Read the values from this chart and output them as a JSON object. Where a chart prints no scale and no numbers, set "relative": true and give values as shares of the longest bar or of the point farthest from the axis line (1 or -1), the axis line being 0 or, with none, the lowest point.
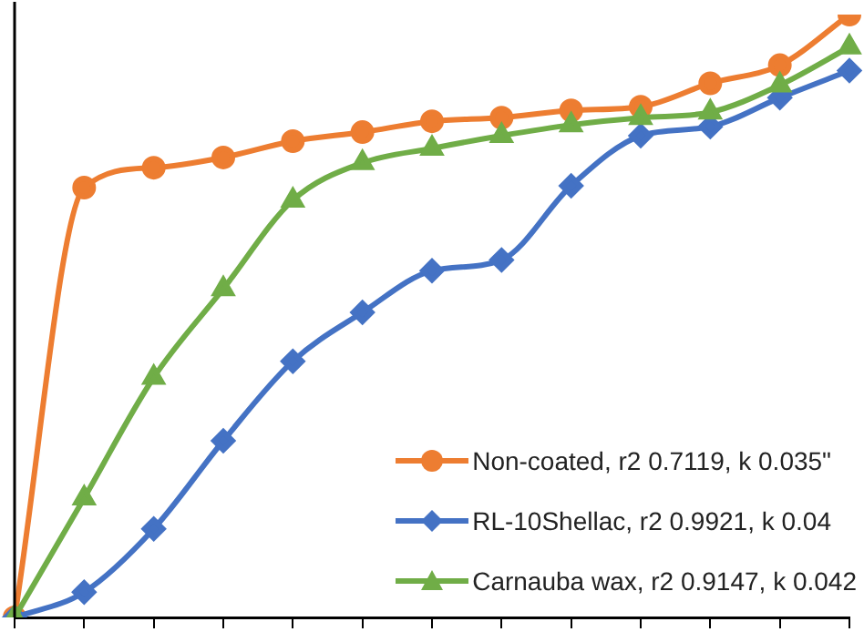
{
  "chart_data": {
    "type": "line",
    "relative": true,
    "categories": [
      null,
      null,
      null,
      null,
      null,
      null,
      null,
      null,
      null,
      null,
      null,
      null,
      null
    ],
    "legend": "bottom right",
    "grid": false,
    "series": [
      {
        "name": "Non-coated, r2 0.7119, k 0.035\"",
        "color": "#ed7d31",
        "marker": "circle",
        "values": [
          0,
          0.713,
          0.746,
          0.763,
          0.79,
          0.805,
          0.823,
          0.829,
          0.841,
          0.847,
          0.886,
          0.916,
          1
        ]
      },
      {
        "name": "RL-10Shellac, r2 0.9921, k 0.04",
        "color": "#4472c4",
        "marker": "diamond",
        "values": [
          0,
          0.042,
          0.147,
          0.293,
          0.425,
          0.506,
          0.575,
          0.593,
          0.716,
          0.799,
          0.814,
          0.862,
          0.907
        ]
      },
      {
        "name": "Carnauba wax, r2 0.9147, k 0.042",
        "color": "#70ad47",
        "marker": "triangle",
        "values": [
          0,
          0.198,
          0.398,
          0.545,
          0.692,
          0.754,
          0.778,
          0.799,
          0.817,
          0.829,
          0.838,
          0.883,
          0.946
        ]
      }
    ]
  }
}
